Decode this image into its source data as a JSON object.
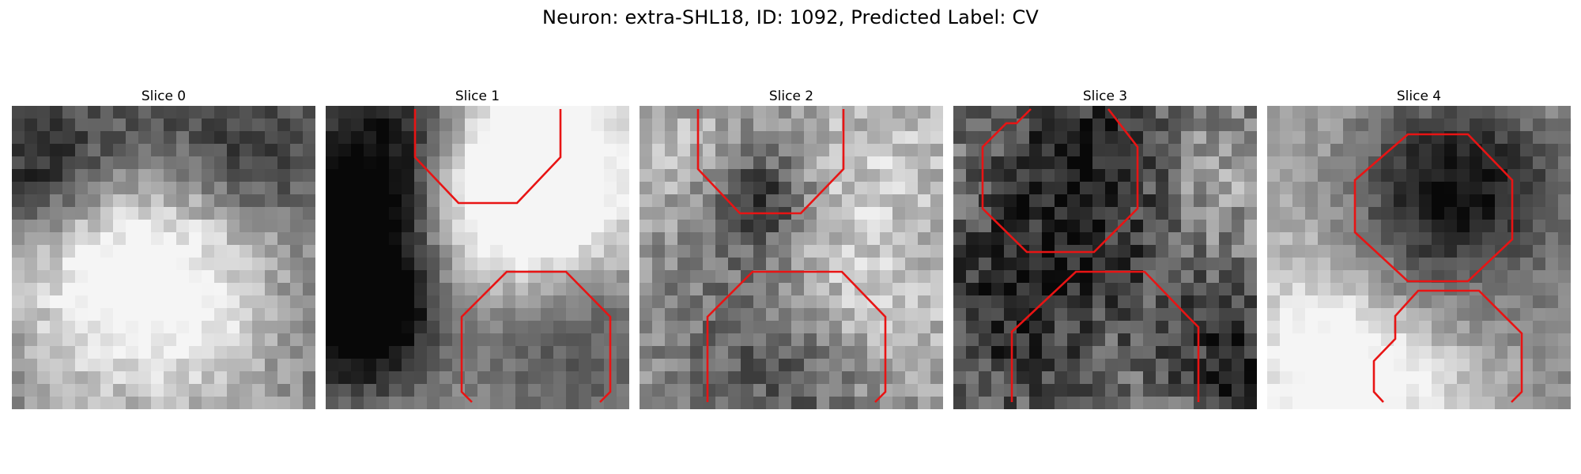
{
  "figure": {
    "title": "Neuron: extra-SHL18, ID: 1092, Predicted Label: CV"
  },
  "panels": [
    {
      "title": "Slice 0",
      "seed": 11,
      "base": 130,
      "contrast": 110,
      "noise": 30,
      "annotated": false
    },
    {
      "title": "Slice 1",
      "seed": 23,
      "base": 140,
      "contrast": 150,
      "noise": 22,
      "annotated": true
    },
    {
      "title": "Slice 2",
      "seed": 37,
      "base": 150,
      "contrast": 95,
      "noise": 38,
      "annotated": true
    },
    {
      "title": "Slice 3",
      "seed": 53,
      "base": 120,
      "contrast": 110,
      "noise": 48,
      "annotated": true
    },
    {
      "title": "Slice 4",
      "seed": 71,
      "base": 150,
      "contrast": 110,
      "noise": 24,
      "annotated": true
    }
  ],
  "overlay_color": "#e81414",
  "colormap": "gray"
}
